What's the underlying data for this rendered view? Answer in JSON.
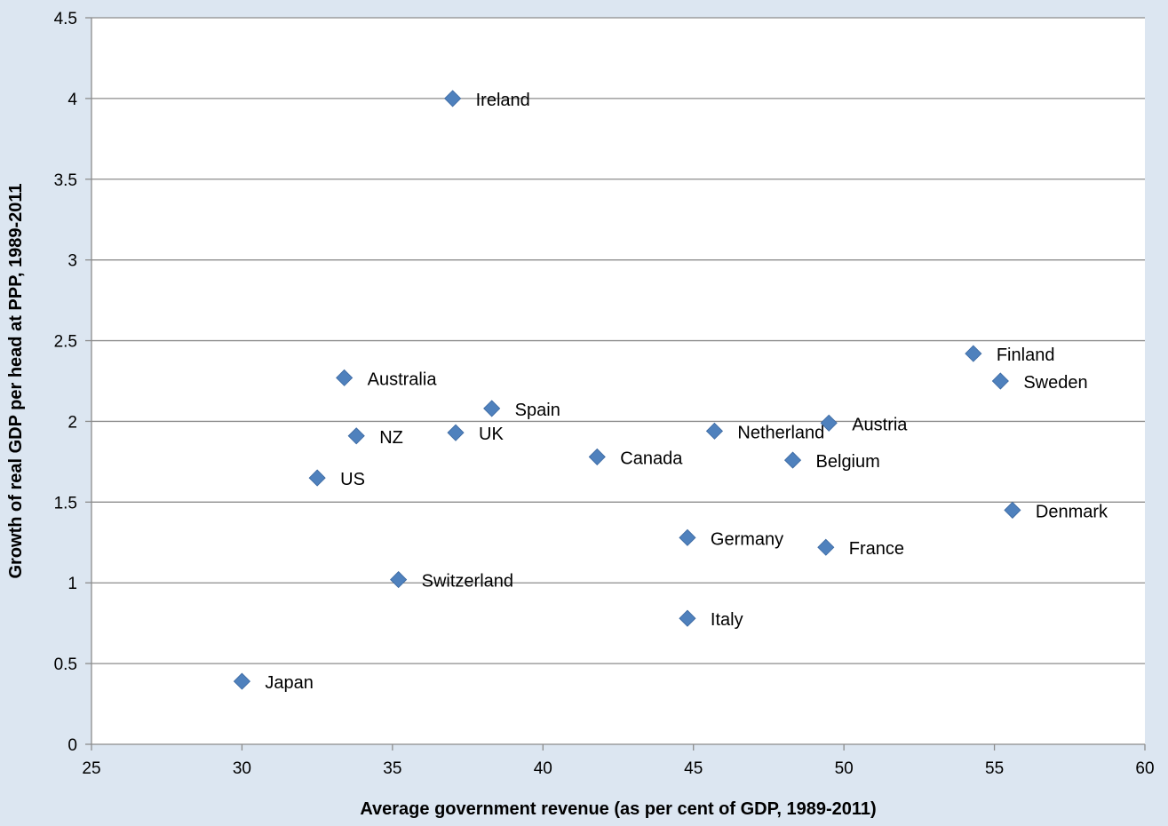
{
  "chart_data": {
    "type": "scatter",
    "title": "",
    "xlabel": "Average government revenue (as per cent of GDP, 1989-2011)",
    "ylabel": "Growth of real GDP per head at PPP, 1989-2011",
    "xlim": [
      25,
      60
    ],
    "ylim": [
      0,
      4.5
    ],
    "x_ticks": [
      "25",
      "30",
      "35",
      "40",
      "45",
      "50",
      "55",
      "60"
    ],
    "y_ticks": [
      "0",
      "0.5",
      "1",
      "1.5",
      "2",
      "2.5",
      "3",
      "3.5",
      "4",
      "4.5"
    ],
    "grid": "horizontal",
    "legend": "none",
    "marker_color": "#4f81bd",
    "points": [
      {
        "label": "Ireland",
        "x": 37.0,
        "y": 4.0
      },
      {
        "label": "Australia",
        "x": 33.4,
        "y": 2.27
      },
      {
        "label": "Spain",
        "x": 38.3,
        "y": 2.08
      },
      {
        "label": "NZ",
        "x": 33.8,
        "y": 1.91
      },
      {
        "label": "UK",
        "x": 37.1,
        "y": 1.93
      },
      {
        "label": "US",
        "x": 32.5,
        "y": 1.65
      },
      {
        "label": "Canada",
        "x": 41.8,
        "y": 1.78
      },
      {
        "label": "Netherland",
        "x": 45.7,
        "y": 1.94
      },
      {
        "label": "Austria",
        "x": 49.5,
        "y": 1.99
      },
      {
        "label": "Belgium",
        "x": 48.3,
        "y": 1.76
      },
      {
        "label": "Finland",
        "x": 54.3,
        "y": 2.42
      },
      {
        "label": "Sweden",
        "x": 55.2,
        "y": 2.25
      },
      {
        "label": "Denmark",
        "x": 55.6,
        "y": 1.45
      },
      {
        "label": "Germany",
        "x": 44.8,
        "y": 1.28
      },
      {
        "label": "France",
        "x": 49.4,
        "y": 1.22
      },
      {
        "label": "Switzerland",
        "x": 35.2,
        "y": 1.02
      },
      {
        "label": "Italy",
        "x": 44.8,
        "y": 0.78
      },
      {
        "label": "Japan",
        "x": 30.0,
        "y": 0.39
      }
    ]
  }
}
